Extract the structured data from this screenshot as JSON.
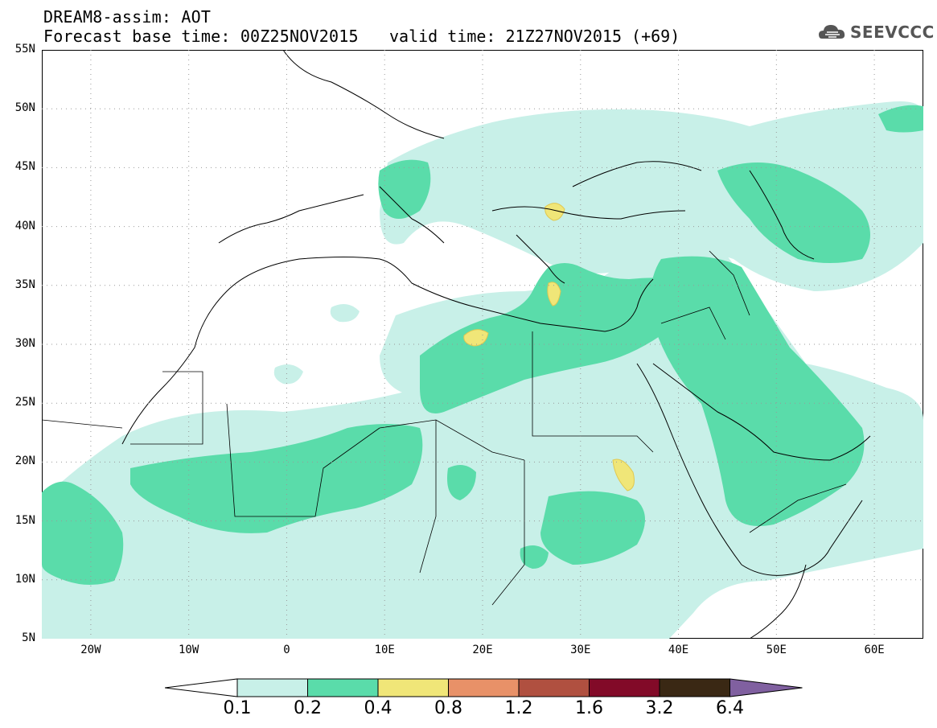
{
  "header": {
    "title": "DREAM8-assim: AOT",
    "base_time": "Forecast base time: 00Z25NOV2015",
    "valid_time": "valid time: 21Z27NOV2015 (+69)",
    "logo_text": "SEEVCCC"
  },
  "map": {
    "lat_labels": [
      "55N",
      "50N",
      "45N",
      "40N",
      "35N",
      "30N",
      "25N",
      "20N",
      "15N",
      "10N",
      "5N"
    ],
    "lon_labels": [
      "20W",
      "10W",
      "0",
      "10E",
      "20E",
      "30E",
      "40E",
      "50E",
      "60E"
    ],
    "extent": {
      "lon_min": -25,
      "lon_max": 65,
      "lat_min": 5,
      "lat_max": 55
    },
    "gridlines": "dotted",
    "field": "AOT"
  },
  "colorbar": {
    "levels": [
      "0.1",
      "0.2",
      "0.4",
      "0.8",
      "1.2",
      "1.6",
      "3.2",
      "6.4"
    ],
    "colors": [
      "#c8f0e8",
      "#5adcaa",
      "#f0e678",
      "#e89168",
      "#b05040",
      "#820a28",
      "#3a2814",
      "#8060a0"
    ],
    "under_color": "#ffffff"
  }
}
